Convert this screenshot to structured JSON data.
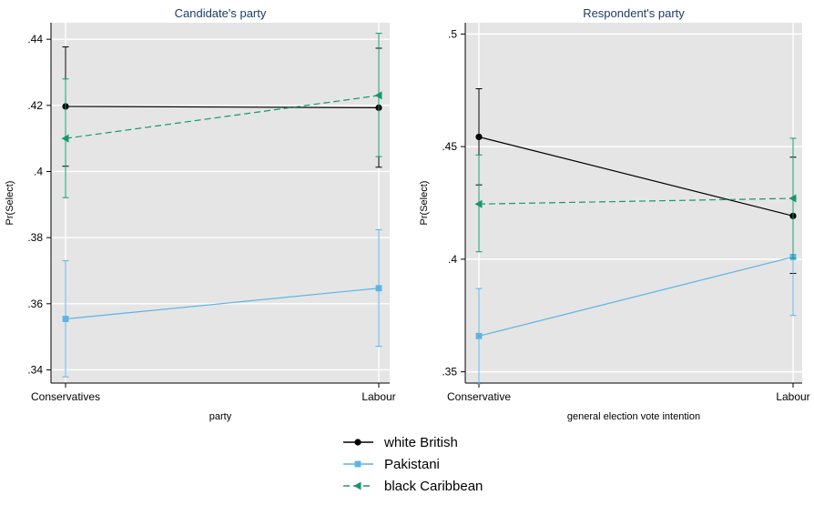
{
  "chart_data": [
    {
      "type": "line",
      "title": "Candidate's party",
      "xlabel": "party",
      "ylabel": "Pr(Select)",
      "categories": [
        "Conservatives",
        "Labour"
      ],
      "ylim": [
        0.336,
        0.445
      ],
      "yticks": [
        ".34",
        ".36",
        ".38",
        ".4",
        ".42",
        ".44"
      ],
      "ytick_values": [
        0.34,
        0.36,
        0.38,
        0.4,
        0.42,
        0.44
      ],
      "grid": true,
      "series": [
        {
          "name": "white British",
          "values": [
            0.4197,
            0.4193
          ],
          "ci_low": [
            0.4016,
            0.4013
          ],
          "ci_high": [
            0.4377,
            0.4373
          ]
        },
        {
          "name": "Pakistani",
          "values": [
            0.3554,
            0.3647
          ],
          "ci_low": [
            0.3379,
            0.3471
          ],
          "ci_high": [
            0.373,
            0.3824
          ]
        },
        {
          "name": "black Caribbean",
          "values": [
            0.41,
            0.423
          ],
          "ci_low": [
            0.3921,
            0.4045
          ],
          "ci_high": [
            0.428,
            0.4418
          ]
        }
      ]
    },
    {
      "type": "line",
      "title": "Respondent's party",
      "xlabel": "general election vote intention",
      "ylabel": "Pr(Select)",
      "categories": [
        "Conservative",
        "Labour"
      ],
      "ylim": [
        0.345,
        0.505
      ],
      "yticks": [
        ".35",
        ".4",
        ".45",
        ".5"
      ],
      "ytick_values": [
        0.35,
        0.4,
        0.45,
        0.5
      ],
      "grid": true,
      "series": [
        {
          "name": "white British",
          "values": [
            0.4543,
            0.4192
          ],
          "ci_low": [
            0.433,
            0.3937
          ],
          "ci_high": [
            0.4757,
            0.4453
          ]
        },
        {
          "name": "Pakistani",
          "values": [
            0.3659,
            0.401
          ],
          "ci_low": [
            0.3447,
            0.375
          ],
          "ci_high": [
            0.387,
            0.427
          ]
        },
        {
          "name": "black Caribbean",
          "values": [
            0.4245,
            0.427
          ],
          "ci_low": [
            0.4033,
            0.4004
          ],
          "ci_high": [
            0.4463,
            0.4537
          ]
        }
      ]
    }
  ],
  "legend": {
    "placement": "bottom-center",
    "items": [
      {
        "label": "white British",
        "color": "#000000",
        "marker": "circle",
        "dash": "solid"
      },
      {
        "label": "Pakistani",
        "color": "#5bb4e5",
        "marker": "square",
        "dash": "solid"
      },
      {
        "label": "black Caribbean",
        "color": "#15986b",
        "marker": "triangle-left",
        "dash": "dashed"
      }
    ]
  }
}
